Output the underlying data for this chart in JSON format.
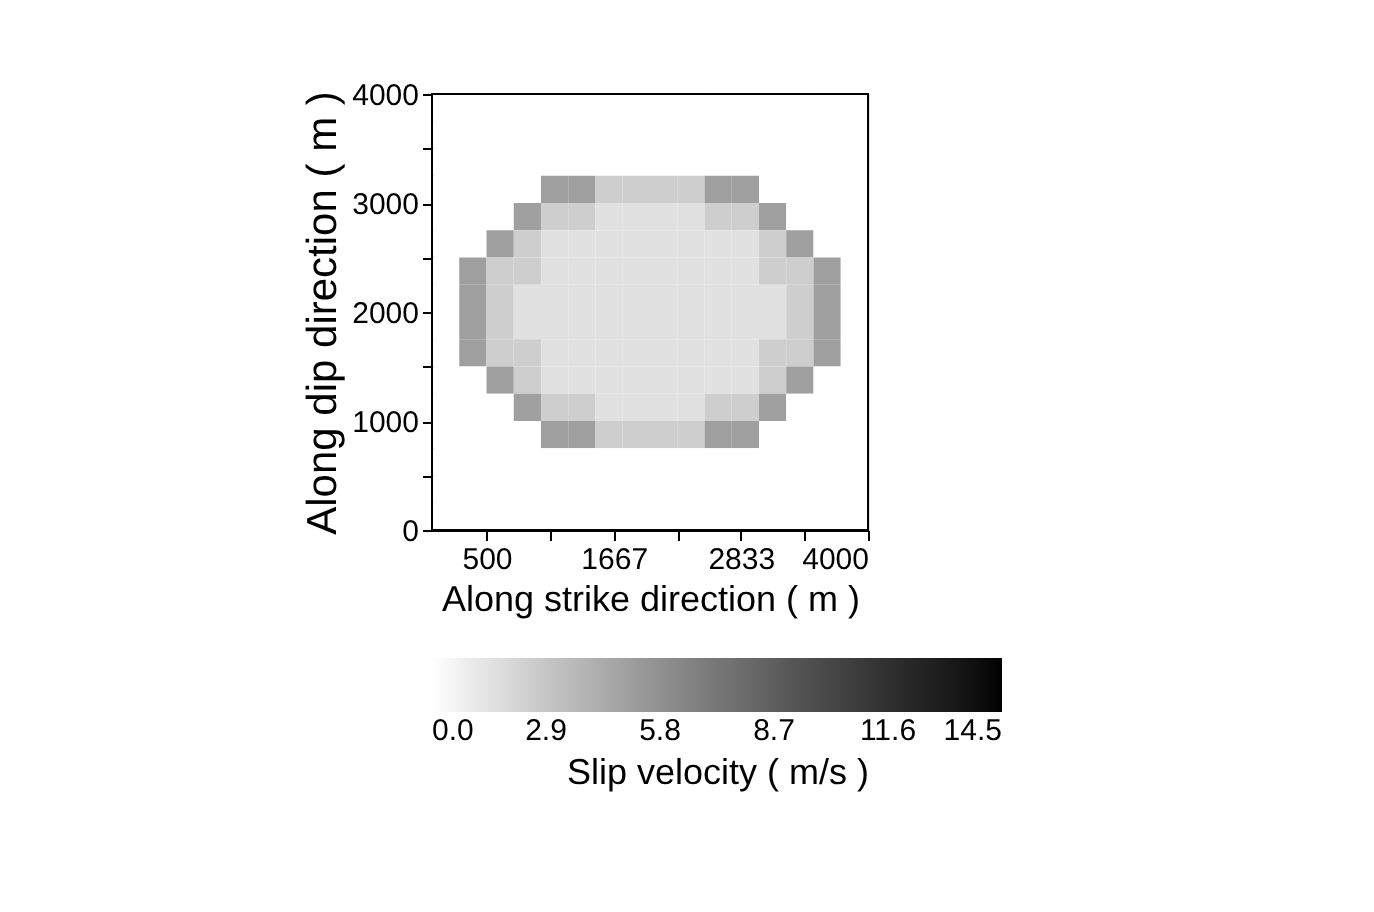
{
  "chart_data": {
    "type": "heatmap",
    "xlabel": "Along strike direction ( m )",
    "ylabel": "Along dip direction ( m )",
    "clabel": "Slip velocity ( m/s )",
    "x": [
      125,
      375,
      625,
      875,
      1125,
      1375,
      1625,
      1875,
      2125,
      2375,
      2625,
      2875,
      3125,
      3375,
      3625,
      3875
    ],
    "y": [
      3875,
      3625,
      3375,
      3125,
      2875,
      2625,
      2375,
      2125,
      1875,
      1625,
      1375,
      1125,
      875,
      625,
      375,
      125
    ],
    "cells": [
      [
        0,
        0,
        0,
        0,
        0,
        0,
        0,
        0,
        0,
        0,
        0,
        0,
        0,
        0,
        0,
        0
      ],
      [
        0,
        0,
        0,
        0,
        0,
        0,
        0,
        0,
        0,
        0,
        0,
        0,
        0,
        0,
        0,
        0
      ],
      [
        0,
        0,
        0,
        0,
        0,
        0,
        0,
        0,
        0,
        0,
        0,
        0,
        0,
        0,
        0,
        0
      ],
      [
        0,
        0,
        0,
        0,
        5.0,
        5.0,
        2.5,
        2.5,
        2.5,
        2.5,
        5.0,
        5.0,
        0,
        0,
        0,
        0
      ],
      [
        0,
        0,
        0,
        5.0,
        2.5,
        2.5,
        1.5,
        1.5,
        1.5,
        1.5,
        2.5,
        2.5,
        5.0,
        0,
        0,
        0
      ],
      [
        0,
        0,
        5.0,
        2.5,
        1.5,
        1.5,
        1.5,
        1.5,
        1.5,
        1.5,
        1.5,
        1.5,
        2.5,
        5.0,
        0,
        0
      ],
      [
        0,
        5.0,
        2.5,
        2.5,
        1.5,
        1.5,
        1.5,
        1.5,
        1.5,
        1.5,
        1.5,
        1.5,
        2.5,
        2.5,
        5.0,
        0
      ],
      [
        0,
        5.0,
        2.5,
        1.5,
        1.5,
        1.5,
        1.5,
        1.5,
        1.5,
        1.5,
        1.5,
        1.5,
        1.5,
        2.5,
        5.0,
        0
      ],
      [
        0,
        5.0,
        2.5,
        1.5,
        1.5,
        1.5,
        1.5,
        1.5,
        1.5,
        1.5,
        1.5,
        1.5,
        1.5,
        2.5,
        5.0,
        0
      ],
      [
        0,
        5.0,
        2.5,
        2.5,
        1.5,
        1.5,
        1.5,
        1.5,
        1.5,
        1.5,
        1.5,
        1.5,
        2.5,
        2.5,
        5.0,
        0
      ],
      [
        0,
        0,
        5.0,
        2.5,
        1.5,
        1.5,
        1.5,
        1.5,
        1.5,
        1.5,
        1.5,
        1.5,
        2.5,
        5.0,
        0,
        0
      ],
      [
        0,
        0,
        0,
        5.0,
        2.5,
        2.5,
        1.5,
        1.5,
        1.5,
        1.5,
        2.5,
        2.5,
        5.0,
        0,
        0,
        0
      ],
      [
        0,
        0,
        0,
        0,
        5.0,
        5.0,
        2.5,
        2.5,
        2.5,
        2.5,
        5.0,
        5.0,
        0,
        0,
        0,
        0
      ],
      [
        0,
        0,
        0,
        0,
        0,
        0,
        0,
        0,
        0,
        0,
        0,
        0,
        0,
        0,
        0,
        0
      ],
      [
        0,
        0,
        0,
        0,
        0,
        0,
        0,
        0,
        0,
        0,
        0,
        0,
        0,
        0,
        0,
        0
      ],
      [
        0,
        0,
        0,
        0,
        0,
        0,
        0,
        0,
        0,
        0,
        0,
        0,
        0,
        0,
        0,
        0
      ]
    ],
    "xlim": [
      0,
      4000
    ],
    "ylim": [
      0,
      4000
    ],
    "xticks": [
      500,
      {
        "value": 1083.5,
        "label": null
      },
      1667,
      {
        "value": 2250,
        "label": null
      },
      2833,
      {
        "value": 3416.5,
        "label": null
      },
      4000
    ],
    "yticks": [
      0,
      {
        "value": 500,
        "label": null
      },
      1000,
      {
        "value": 1500,
        "label": null
      },
      2000,
      {
        "value": 2500,
        "label": null
      },
      3000,
      {
        "value": 3500,
        "label": null
      },
      4000
    ],
    "clim": [
      0,
      14.5
    ],
    "cticks": [
      {
        "value": 0,
        "label": "0.0"
      },
      2.9,
      5.8,
      8.7,
      11.6,
      14.5
    ],
    "colors": [
      "#ffffff",
      "#000000"
    ],
    "grid": false
  }
}
